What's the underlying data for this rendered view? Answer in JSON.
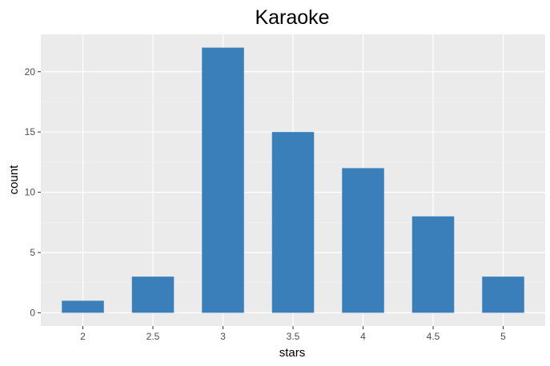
{
  "chart_data": {
    "type": "bar",
    "title": "Karaoke",
    "xlabel": "stars",
    "ylabel": "count",
    "categories": [
      "2",
      "2.5",
      "3",
      "3.5",
      "4",
      "4.5",
      "5"
    ],
    "values": [
      1,
      3,
      22,
      15,
      12,
      8,
      3
    ],
    "yticks": [
      "0",
      "5",
      "10",
      "15",
      "20"
    ],
    "ylim": [
      -1.1,
      23.1
    ],
    "grid": true,
    "legend": "none",
    "colors": {
      "bar": "#3a7fba",
      "panel": "#ebebeb",
      "grid_major": "#ffffff",
      "grid_minor": "#f4f4f4",
      "tick_text": "#4d4d4d",
      "tick_mark": "#333333"
    }
  }
}
